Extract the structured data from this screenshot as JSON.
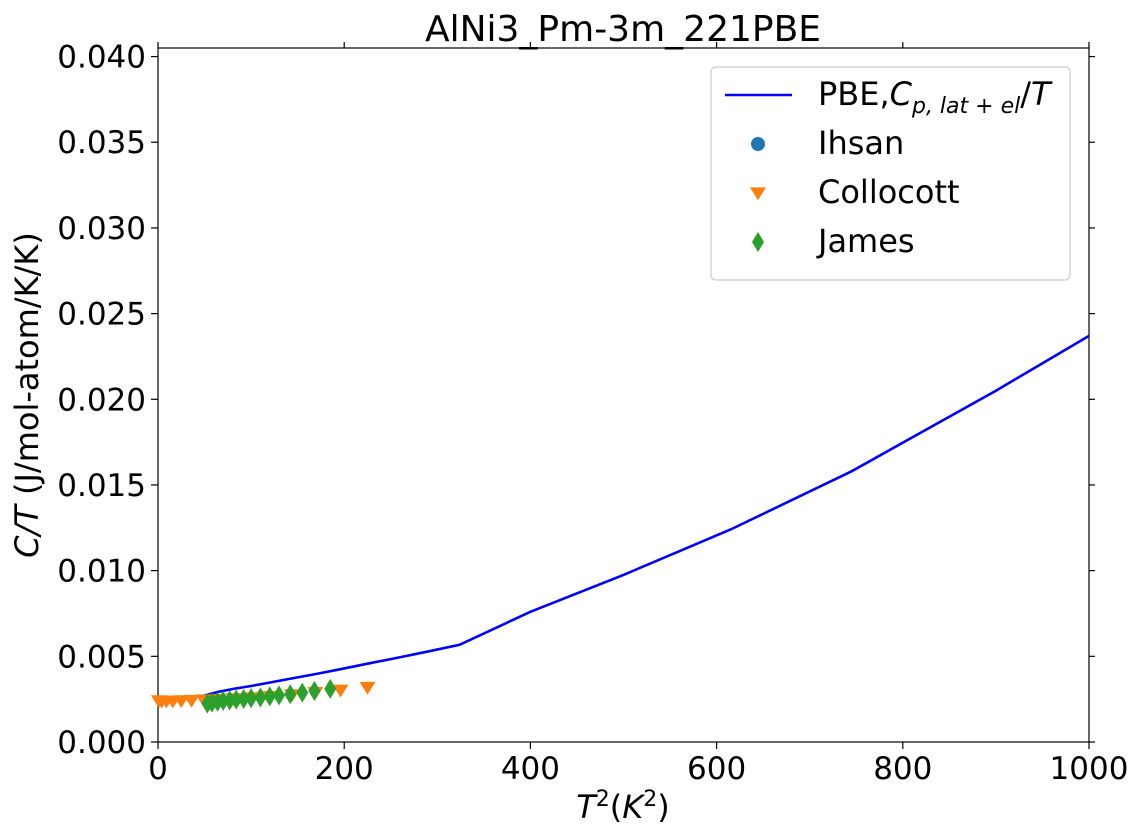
{
  "chart_data": {
    "type": "line",
    "title": "AlNi3_Pm-3m_221PBE",
    "xlabel": {
      "base": "T",
      "sup": "2",
      "rest_open": "(K",
      "rest_sup": "2",
      "rest_close": ")"
    },
    "ylabel": {
      "italic": "C/T",
      "rest": " (J/mol-atom/K/K)"
    },
    "xlim": [
      0,
      1000
    ],
    "ylim": [
      0,
      0.0405
    ],
    "xticks": [
      0,
      200,
      400,
      600,
      800,
      1000
    ],
    "xtick_labels": [
      "0",
      "200",
      "400",
      "600",
      "800",
      "1000"
    ],
    "yticks": [
      0.0,
      0.005,
      0.01,
      0.015,
      0.02,
      0.025,
      0.03,
      0.035,
      0.04
    ],
    "ytick_labels": [
      "0.000",
      "0.005",
      "0.010",
      "0.015",
      "0.020",
      "0.025",
      "0.030",
      "0.035",
      "0.040"
    ],
    "grid": false,
    "legend_position": "top-right",
    "series": [
      {
        "name": "PBE,Cp,lat+el/T",
        "legend": {
          "prefix": "PBE,",
          "italic": "C",
          "sub": "p, lat + el",
          "suffix": "/T"
        },
        "kind": "line",
        "color": "#0000ff",
        "x": [
          49,
          64,
          81,
          100,
          121,
          144,
          169,
          196,
          225,
          256,
          289,
          324,
          400,
          500,
          615,
          745,
          900,
          1000
        ],
        "y": [
          0.0027,
          0.00292,
          0.0031,
          0.00327,
          0.00348,
          0.00371,
          0.00396,
          0.00425,
          0.00457,
          0.0049,
          0.00527,
          0.00567,
          0.0076,
          0.00975,
          0.0124,
          0.0158,
          0.0205,
          0.0237
        ]
      },
      {
        "name": "Ihsan",
        "kind": "scatter",
        "marker": "circle",
        "color": "#1f77b4",
        "x": [],
        "y": []
      },
      {
        "name": "Collocott",
        "kind": "scatter",
        "marker": "triangle-down",
        "color": "#ff7f0e",
        "x": [
          1,
          4,
          9,
          16,
          25,
          36,
          49,
          64,
          81,
          100,
          121,
          144,
          169,
          196,
          225
        ],
        "y": [
          0.0024,
          0.00238,
          0.00238,
          0.00238,
          0.0024,
          0.00242,
          0.00245,
          0.00248,
          0.00252,
          0.00258,
          0.00265,
          0.00275,
          0.00288,
          0.00302,
          0.00318
        ]
      },
      {
        "name": "James",
        "kind": "scatter",
        "marker": "diamond",
        "color": "#2ca02c",
        "x": [
          53,
          58,
          64,
          70,
          77,
          84,
          92,
          100,
          110,
          120,
          130,
          142,
          155,
          168,
          185
        ],
        "y": [
          0.00225,
          0.0023,
          0.00235,
          0.0024,
          0.00243,
          0.00247,
          0.00251,
          0.00255,
          0.0026,
          0.00266,
          0.00272,
          0.00279,
          0.00288,
          0.00298,
          0.0031
        ]
      }
    ]
  }
}
